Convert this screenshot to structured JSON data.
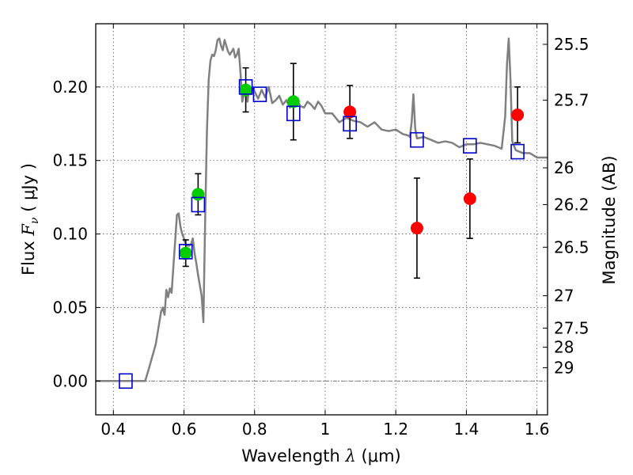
{
  "chart_data": {
    "type": "scatter",
    "xlabel_prefix": "Wavelength",
    "xlabel_symbol": "λ",
    "xlabel_unit": "(μm)",
    "ylabel_prefix": "Flux",
    "ylabel_symbol": "F",
    "ylabel_sub": "ν",
    "ylabel_unit": "( μJy )",
    "y2label": "Magnitude (AB)",
    "xlim": [
      0.35,
      1.63
    ],
    "ylim": [
      -0.023,
      0.243
    ],
    "x_ticks": [
      0.4,
      0.6,
      0.8,
      1.0,
      1.2,
      1.4,
      1.6
    ],
    "x_tick_labels": [
      "0.4",
      "0.6",
      "0.8",
      "1",
      "1.2",
      "1.4",
      "1.6"
    ],
    "y_ticks": [
      0.0,
      0.05,
      0.1,
      0.15,
      0.2
    ],
    "y_tick_labels": [
      "0.00",
      "0.05",
      "0.10",
      "0.15",
      "0.20"
    ],
    "y2_ticks": [
      {
        "label": "25.5",
        "flux": 0.229
      },
      {
        "label": "25.7",
        "flux": 0.191
      },
      {
        "label": "26",
        "flux": 0.145
      },
      {
        "label": "26.2",
        "flux": 0.12
      },
      {
        "label": "26.5",
        "flux": 0.091
      },
      {
        "label": "27",
        "flux": 0.058
      },
      {
        "label": "27.5",
        "flux": 0.036
      },
      {
        "label": "28",
        "flux": 0.023
      },
      {
        "label": "29",
        "flux": 0.009
      }
    ],
    "grid": true,
    "colors": {
      "template": "#808080",
      "green": "#00cc00",
      "red": "#ff0000",
      "model": "#0000cc",
      "error": "#000000",
      "grid": "#555555"
    },
    "series": [
      {
        "name": "SED template",
        "kind": "line",
        "points": [
          [
            0.35,
            0.0
          ],
          [
            0.49,
            0.0
          ],
          [
            0.5,
            0.008
          ],
          [
            0.52,
            0.025
          ],
          [
            0.535,
            0.047
          ],
          [
            0.54,
            0.05
          ],
          [
            0.545,
            0.045
          ],
          [
            0.55,
            0.062
          ],
          [
            0.555,
            0.057
          ],
          [
            0.56,
            0.063
          ],
          [
            0.565,
            0.06
          ],
          [
            0.57,
            0.078
          ],
          [
            0.575,
            0.095
          ],
          [
            0.58,
            0.113
          ],
          [
            0.585,
            0.114
          ],
          [
            0.59,
            0.105
          ],
          [
            0.595,
            0.1
          ],
          [
            0.6,
            0.097
          ],
          [
            0.605,
            0.093
          ],
          [
            0.61,
            0.092
          ],
          [
            0.615,
            0.092
          ],
          [
            0.62,
            0.093
          ],
          [
            0.625,
            0.097
          ],
          [
            0.63,
            0.087
          ],
          [
            0.635,
            0.08
          ],
          [
            0.64,
            0.072
          ],
          [
            0.645,
            0.065
          ],
          [
            0.65,
            0.058
          ],
          [
            0.655,
            0.04
          ],
          [
            0.66,
            0.11
          ],
          [
            0.665,
            0.17
          ],
          [
            0.67,
            0.205
          ],
          [
            0.675,
            0.218
          ],
          [
            0.68,
            0.222
          ],
          [
            0.685,
            0.221
          ],
          [
            0.69,
            0.225
          ],
          [
            0.695,
            0.232
          ],
          [
            0.7,
            0.233
          ],
          [
            0.705,
            0.228
          ],
          [
            0.71,
            0.225
          ],
          [
            0.715,
            0.232
          ],
          [
            0.72,
            0.228
          ],
          [
            0.725,
            0.224
          ],
          [
            0.73,
            0.222
          ],
          [
            0.735,
            0.224
          ],
          [
            0.74,
            0.226
          ],
          [
            0.745,
            0.22
          ],
          [
            0.75,
            0.222
          ],
          [
            0.755,
            0.226
          ],
          [
            0.76,
            0.21
          ],
          [
            0.765,
            0.19
          ],
          [
            0.77,
            0.195
          ],
          [
            0.775,
            0.2
          ],
          [
            0.78,
            0.19
          ],
          [
            0.785,
            0.2
          ],
          [
            0.79,
            0.195
          ],
          [
            0.795,
            0.2
          ],
          [
            0.8,
            0.197
          ],
          [
            0.81,
            0.192
          ],
          [
            0.82,
            0.198
          ],
          [
            0.83,
            0.193
          ],
          [
            0.84,
            0.2
          ],
          [
            0.85,
            0.189
          ],
          [
            0.86,
            0.191
          ],
          [
            0.87,
            0.194
          ],
          [
            0.88,
            0.188
          ],
          [
            0.89,
            0.191
          ],
          [
            0.9,
            0.186
          ],
          [
            0.91,
            0.189
          ],
          [
            0.92,
            0.191
          ],
          [
            0.93,
            0.187
          ],
          [
            0.94,
            0.186
          ],
          [
            0.95,
            0.19
          ],
          [
            0.96,
            0.188
          ],
          [
            0.97,
            0.185
          ],
          [
            0.98,
            0.19
          ],
          [
            0.99,
            0.187
          ],
          [
            1.0,
            0.182
          ],
          [
            1.02,
            0.182
          ],
          [
            1.04,
            0.176
          ],
          [
            1.06,
            0.179
          ],
          [
            1.08,
            0.177
          ],
          [
            1.1,
            0.176
          ],
          [
            1.12,
            0.173
          ],
          [
            1.14,
            0.176
          ],
          [
            1.16,
            0.171
          ],
          [
            1.18,
            0.17
          ],
          [
            1.2,
            0.171
          ],
          [
            1.22,
            0.168
          ],
          [
            1.235,
            0.167
          ],
          [
            1.24,
            0.166
          ],
          [
            1.245,
            0.176
          ],
          [
            1.25,
            0.195
          ],
          [
            1.255,
            0.172
          ],
          [
            1.26,
            0.165
          ],
          [
            1.28,
            0.166
          ],
          [
            1.3,
            0.164
          ],
          [
            1.32,
            0.162
          ],
          [
            1.34,
            0.163
          ],
          [
            1.36,
            0.162
          ],
          [
            1.38,
            0.159
          ],
          [
            1.4,
            0.161
          ],
          [
            1.42,
            0.161
          ],
          [
            1.44,
            0.162
          ],
          [
            1.46,
            0.161
          ],
          [
            1.48,
            0.16
          ],
          [
            1.5,
            0.158
          ],
          [
            1.51,
            0.18
          ],
          [
            1.515,
            0.215
          ],
          [
            1.52,
            0.233
          ],
          [
            1.525,
            0.205
          ],
          [
            1.53,
            0.163
          ],
          [
            1.54,
            0.157
          ],
          [
            1.56,
            0.155
          ],
          [
            1.58,
            0.155
          ],
          [
            1.6,
            0.152
          ],
          [
            1.63,
            0.152
          ]
        ]
      },
      {
        "name": "Model photometry",
        "kind": "open-square",
        "points": [
          [
            0.435,
            0.0
          ],
          [
            0.605,
            0.088
          ],
          [
            0.64,
            0.12
          ],
          [
            0.775,
            0.2
          ],
          [
            0.815,
            0.195
          ],
          [
            0.91,
            0.182
          ],
          [
            1.07,
            0.175
          ],
          [
            1.26,
            0.164
          ],
          [
            1.41,
            0.16
          ],
          [
            1.545,
            0.156
          ]
        ]
      },
      {
        "name": "Green detections",
        "kind": "filled-circle",
        "color": "green",
        "points": [
          [
            0.605,
            0.087,
            0.009
          ],
          [
            0.64,
            0.127,
            0.014
          ],
          [
            0.775,
            0.198,
            0.015
          ],
          [
            0.91,
            0.19,
            0.026
          ]
        ]
      },
      {
        "name": "Red detections",
        "kind": "filled-circle",
        "color": "red",
        "points": [
          [
            1.07,
            0.183,
            0.018
          ],
          [
            1.26,
            0.104,
            0.034
          ],
          [
            1.41,
            0.124,
            0.027
          ],
          [
            1.545,
            0.181,
            0.019
          ]
        ]
      }
    ]
  }
}
